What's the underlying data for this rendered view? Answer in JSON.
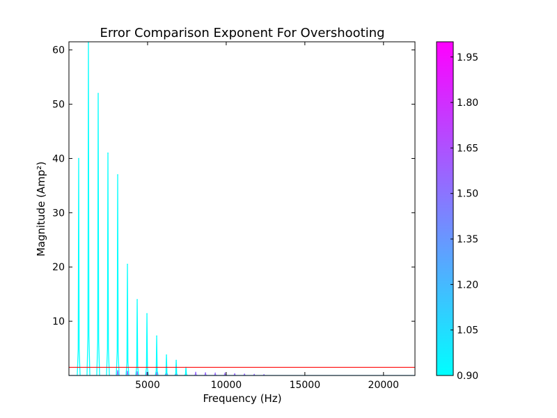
{
  "chart_data": {
    "type": "line",
    "title": "Error Comparison Exponent For Overshooting",
    "xlabel": "Frequency (Hz)",
    "ylabel": "Magnitude (Amp²)",
    "xlim": [
      0,
      22000
    ],
    "ylim": [
      0,
      61.5
    ],
    "xticks": [
      "5000",
      "10000",
      "15000",
      "20000"
    ],
    "xtick_values": [
      5000,
      10000,
      15000,
      20000
    ],
    "yticks": [
      "10",
      "20",
      "30",
      "40",
      "50",
      "60"
    ],
    "ytick_values": [
      10,
      20,
      30,
      40,
      50,
      60
    ],
    "grid": false,
    "threshold_line": {
      "y": 1.5,
      "color": "#ff0000"
    },
    "peak_series": {
      "color_value": 0.9,
      "x": [
        620,
        1240,
        1860,
        2480,
        3100,
        3720,
        4340,
        4960,
        5580,
        6200,
        6820,
        7440
      ],
      "y": [
        40,
        61.5,
        52,
        41,
        37,
        20.5,
        14,
        11.4,
        7.3,
        3.8,
        2.8,
        1.5
      ]
    },
    "minor_peaks": {
      "color_value": 1.55,
      "x": [
        3100,
        3720,
        4340,
        4960,
        5580,
        6200,
        6820,
        7440,
        8060,
        8680,
        9300,
        9920,
        10540,
        11160,
        11780,
        12400
      ],
      "y": [
        0.9,
        0.8,
        0.7,
        0.6,
        0.6,
        0.5,
        0.5,
        0.6,
        0.6,
        0.5,
        0.4,
        0.4,
        0.3,
        0.25,
        0.2,
        0.15
      ]
    },
    "colorbar": {
      "range": [
        0.9,
        2.0
      ],
      "ticks": [
        "0.90",
        "1.05",
        "1.20",
        "1.35",
        "1.50",
        "1.65",
        "1.80",
        "1.95"
      ],
      "tick_values": [
        0.9,
        1.05,
        1.2,
        1.35,
        1.5,
        1.65,
        1.8,
        1.95
      ],
      "colormap": "cool",
      "color_low": "#00ffff",
      "color_high": "#ff00ff"
    }
  }
}
